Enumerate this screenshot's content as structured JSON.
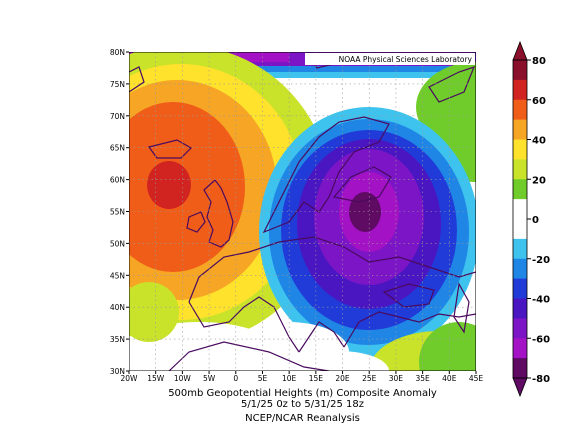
{
  "header": {
    "credit": "NOAA Physical Sciences Laboratory"
  },
  "map": {
    "projection": "lat-lon",
    "lon_range": [
      -20,
      45
    ],
    "lat_range": [
      30,
      80
    ],
    "lat_labels": [
      "80N",
      "75N",
      "70N",
      "65N",
      "60N",
      "55N",
      "50N",
      "45N",
      "40N",
      "35N",
      "30N"
    ],
    "lon_labels": [
      "20W",
      "15W",
      "10W",
      "5W",
      "0",
      "5E",
      "10E",
      "15E",
      "20E",
      "25E",
      "30E",
      "35E",
      "40E",
      "45E"
    ]
  },
  "colorbar": {
    "tick_labels": [
      "80",
      "60",
      "40",
      "20",
      "0",
      "-20",
      "-40",
      "-60",
      "-80"
    ],
    "colors": [
      "#8a0f2a",
      "#d1231f",
      "#ef5d19",
      "#f6a524",
      "#ffe22c",
      "#c9e22a",
      "#6fcc2a",
      "#ffffff",
      "#ffffff",
      "#3ec3ee",
      "#1f86e6",
      "#203bd8",
      "#4a16c2",
      "#7b15c6",
      "#a312c4",
      "#5f0a63"
    ]
  },
  "anomaly": {
    "positive_center": {
      "lon": -12,
      "lat": 59,
      "value": 70
    },
    "negative_center": {
      "lon": 24,
      "lat": 55,
      "value": -90
    }
  },
  "caption": {
    "line1": "500mb Geopotential Heights (m)     Composite Anomaly",
    "line2": "5/1/25 0z  to 5/31/25 18z",
    "line3": "NCEP/NCAR Reanalysis"
  }
}
